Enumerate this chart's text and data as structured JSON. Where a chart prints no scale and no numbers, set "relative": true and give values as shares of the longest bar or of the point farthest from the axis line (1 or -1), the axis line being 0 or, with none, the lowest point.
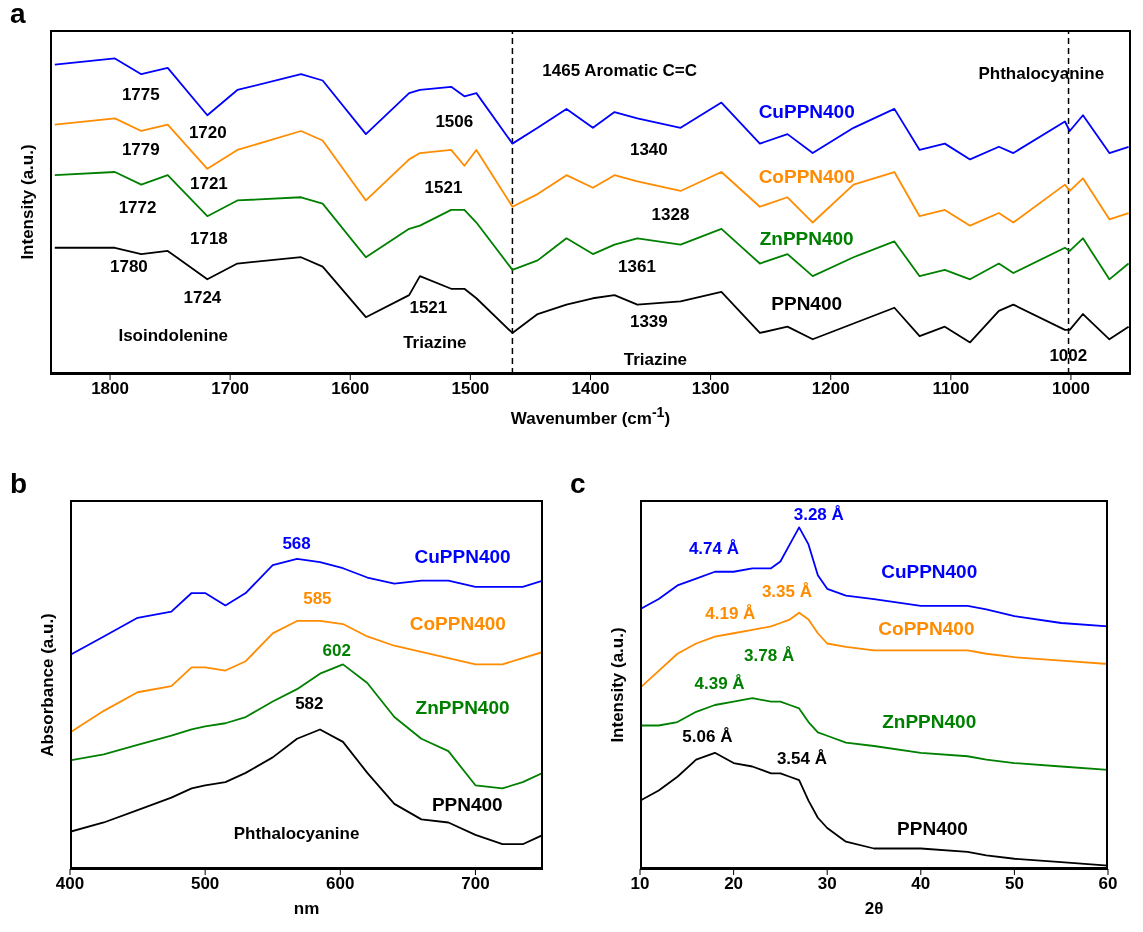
{
  "chart_data": [
    {
      "type": "line",
      "title": "a",
      "xlabel": "Wavenumber (cm$^{-1}$)",
      "ylabel": "Intensity (a.u.)",
      "relative": true,
      "x": [
        1846,
        1796,
        1774,
        1752,
        1719,
        1694,
        1641,
        1623,
        1587,
        1551,
        1542,
        1516,
        1505,
        1495,
        1465,
        1444,
        1420,
        1398,
        1380,
        1361,
        1325,
        1291,
        1259,
        1236,
        1215,
        1181,
        1147,
        1126,
        1105,
        1084,
        1060,
        1048,
        1005,
        1001,
        990,
        968,
        952
      ],
      "xlim": [
        1850,
        950
      ],
      "xticks": [
        1800,
        1700,
        1600,
        1500,
        1400,
        1300,
        1200,
        1100,
        1000
      ],
      "series": [
        {
          "name": "CuPPN400",
          "color": "#0000ff",
          "values": [
            0.98,
            1.0,
            0.95,
            0.97,
            0.82,
            0.9,
            0.95,
            0.93,
            0.76,
            0.89,
            0.9,
            0.91,
            0.88,
            0.89,
            0.73,
            0.78,
            0.84,
            0.78,
            0.83,
            0.81,
            0.78,
            0.86,
            0.73,
            0.76,
            0.7,
            0.78,
            0.84,
            0.71,
            0.73,
            0.68,
            0.72,
            0.7,
            0.8,
            0.77,
            0.82,
            0.7,
            0.72
          ]
        },
        {
          "name": "CoPPN400",
          "color": "#ff8c00",
          "values": [
            0.79,
            0.81,
            0.77,
            0.79,
            0.65,
            0.71,
            0.77,
            0.74,
            0.55,
            0.68,
            0.7,
            0.71,
            0.66,
            0.71,
            0.53,
            0.57,
            0.63,
            0.59,
            0.63,
            0.61,
            0.58,
            0.64,
            0.53,
            0.56,
            0.48,
            0.6,
            0.64,
            0.5,
            0.52,
            0.47,
            0.51,
            0.48,
            0.6,
            0.58,
            0.62,
            0.49,
            0.51
          ]
        },
        {
          "name": "ZnPPN400",
          "color": "#008000",
          "values": [
            0.63,
            0.64,
            0.6,
            0.63,
            0.5,
            0.55,
            0.56,
            0.54,
            0.37,
            0.46,
            0.47,
            0.52,
            0.52,
            0.48,
            0.33,
            0.36,
            0.43,
            0.38,
            0.41,
            0.43,
            0.41,
            0.46,
            0.35,
            0.38,
            0.31,
            0.37,
            0.42,
            0.31,
            0.33,
            0.3,
            0.35,
            0.32,
            0.4,
            0.39,
            0.43,
            0.3,
            0.35
          ]
        },
        {
          "name": "PPN400",
          "color": "#000000",
          "values": [
            0.4,
            0.4,
            0.38,
            0.39,
            0.3,
            0.35,
            0.37,
            0.34,
            0.18,
            0.25,
            0.31,
            0.27,
            0.27,
            0.24,
            0.13,
            0.19,
            0.22,
            0.24,
            0.25,
            0.22,
            0.23,
            0.26,
            0.13,
            0.15,
            0.11,
            0.16,
            0.21,
            0.12,
            0.15,
            0.1,
            0.2,
            0.22,
            0.14,
            0.14,
            0.19,
            0.11,
            0.15
          ]
        }
      ],
      "ref_lines": [
        {
          "axis": "x",
          "value": 1465,
          "line_style": "dashed"
        },
        {
          "axis": "x",
          "value": 1002,
          "line_style": "dashed"
        }
      ],
      "annotations": [
        "1775",
        "1720",
        "1506",
        "1465 Aromatic C=C",
        "Phthalocyanine",
        "1340",
        "1779",
        "1721",
        "1521",
        "1328",
        "1772",
        "1718",
        "1361",
        "1780",
        "1724",
        "1521",
        "1339",
        "Isoindolenine",
        "Triazine",
        "Triazine",
        "1002"
      ]
    },
    {
      "type": "line",
      "title": "b",
      "xlabel": "nm",
      "ylabel": "Absorbance (a.u.)",
      "relative": true,
      "x": [
        400,
        425,
        450,
        475,
        490,
        500,
        515,
        530,
        550,
        568,
        585,
        602,
        620,
        640,
        660,
        680,
        700,
        720,
        735,
        750
      ],
      "xlim": [
        400,
        750
      ],
      "xticks": [
        400,
        500,
        600,
        700
      ],
      "series": [
        {
          "name": "CuPPN400",
          "color": "#0000ff",
          "values": [
            0.69,
            0.75,
            0.81,
            0.83,
            0.89,
            0.89,
            0.85,
            0.89,
            0.98,
            1.0,
            0.99,
            0.97,
            0.94,
            0.92,
            0.93,
            0.93,
            0.91,
            0.91,
            0.91,
            0.93
          ]
        },
        {
          "name": "CoPPN400",
          "color": "#ff8c00",
          "values": [
            0.44,
            0.51,
            0.57,
            0.59,
            0.65,
            0.65,
            0.64,
            0.67,
            0.76,
            0.8,
            0.8,
            0.79,
            0.75,
            0.72,
            0.7,
            0.68,
            0.66,
            0.66,
            0.68,
            0.7
          ]
        },
        {
          "name": "ZnPPN400",
          "color": "#008000",
          "values": [
            0.35,
            0.37,
            0.4,
            0.43,
            0.45,
            0.46,
            0.47,
            0.49,
            0.54,
            0.58,
            0.63,
            0.66,
            0.6,
            0.49,
            0.42,
            0.38,
            0.27,
            0.26,
            0.28,
            0.31
          ]
        },
        {
          "name": "PPN400",
          "color": "#000000",
          "values": [
            0.12,
            0.15,
            0.19,
            0.23,
            0.26,
            0.27,
            0.28,
            0.31,
            0.36,
            0.42,
            0.45,
            0.41,
            0.31,
            0.21,
            0.16,
            0.15,
            0.11,
            0.08,
            0.08,
            0.11
          ]
        }
      ],
      "annotations": [
        "568",
        "585",
        "602",
        "582",
        "Phthalocyanine"
      ]
    },
    {
      "type": "line",
      "title": "c",
      "xlabel": "2θ",
      "ylabel": "Intensity (a.u.)",
      "relative": true,
      "x": [
        10,
        12,
        14,
        16,
        18,
        20,
        22,
        24,
        25,
        26,
        27,
        28,
        29,
        30,
        32,
        35,
        40,
        45,
        47,
        50,
        55,
        60
      ],
      "xlim": [
        10,
        60
      ],
      "xticks": [
        10,
        20,
        30,
        40,
        50,
        60
      ],
      "series": [
        {
          "name": "CuPPN400",
          "color": "#0000ff",
          "values": [
            0.76,
            0.79,
            0.83,
            0.85,
            0.87,
            0.87,
            0.88,
            0.88,
            0.9,
            0.95,
            1.0,
            0.95,
            0.86,
            0.82,
            0.8,
            0.79,
            0.77,
            0.77,
            0.76,
            0.74,
            0.72,
            0.71
          ]
        },
        {
          "name": "CoPPN400",
          "color": "#ff8c00",
          "values": [
            0.53,
            0.58,
            0.63,
            0.66,
            0.68,
            0.69,
            0.7,
            0.71,
            0.72,
            0.73,
            0.75,
            0.73,
            0.69,
            0.66,
            0.65,
            0.64,
            0.64,
            0.64,
            0.63,
            0.62,
            0.61,
            0.6
          ]
        },
        {
          "name": "ZnPPN400",
          "color": "#008000",
          "values": [
            0.42,
            0.42,
            0.43,
            0.46,
            0.48,
            0.49,
            0.5,
            0.49,
            0.49,
            0.48,
            0.47,
            0.43,
            0.4,
            0.39,
            0.37,
            0.36,
            0.34,
            0.33,
            0.32,
            0.31,
            0.3,
            0.29
          ]
        },
        {
          "name": "PPN400",
          "color": "#000000",
          "values": [
            0.2,
            0.23,
            0.27,
            0.32,
            0.34,
            0.31,
            0.3,
            0.28,
            0.28,
            0.27,
            0.26,
            0.2,
            0.15,
            0.12,
            0.08,
            0.06,
            0.06,
            0.05,
            0.04,
            0.03,
            0.02,
            0.01
          ]
        }
      ],
      "annotations": [
        "3.28 Å",
        "4.74 Å",
        "3.35 Å",
        "4.19 Å",
        "3.78 Å",
        "4.39 Å",
        "5.06 Å",
        "3.54 Å"
      ]
    }
  ]
}
